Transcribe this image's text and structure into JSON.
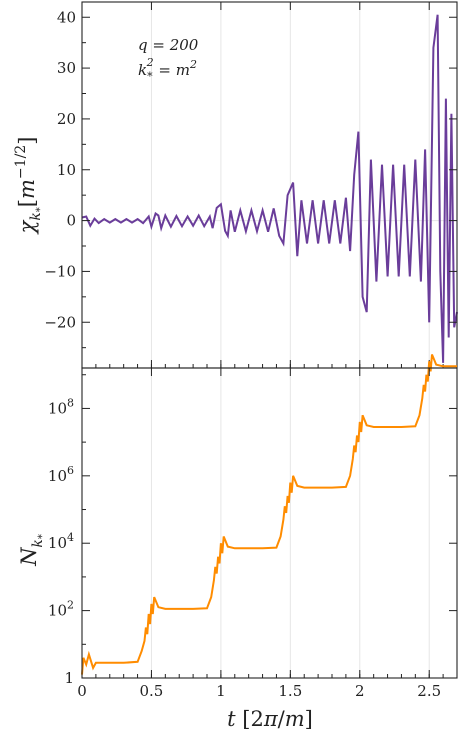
{
  "chart_data": [
    {
      "type": "line",
      "panel": "top",
      "ylabel": "χ_{k*} [m^{-1/2}]",
      "ylabel_parts": {
        "symbol": "χ",
        "sub": "k",
        "subsub": "*",
        "unit_open": "[",
        "unit_base": "m",
        "unit_exp": "−1/2",
        "unit_close": "]"
      },
      "x_range": [
        0,
        2.7
      ],
      "ylim": [
        -29,
        43
      ],
      "yticks": [
        -20,
        -10,
        0,
        10,
        20,
        30,
        40
      ],
      "ytick_labels": [
        "−20",
        "−10",
        "0",
        "10",
        "20",
        "30",
        "40"
      ],
      "annotations": [
        {
          "text": "q = 200"
        },
        {
          "text": "k*² = m²",
          "parts": {
            "k": "k",
            "sub": "*",
            "sup": "2",
            "eq": " = ",
            "m": "m",
            "msup": "2"
          }
        }
      ],
      "grid": "vertical",
      "color": "#6a3d9a",
      "series": [
        {
          "x": [
            0,
            0.03,
            0.06,
            0.09,
            0.12,
            0.16,
            0.2,
            0.24,
            0.28,
            0.32,
            0.36,
            0.4,
            0.44,
            0.48,
            0.5,
            0.53,
            0.55,
            0.57,
            0.6,
            0.64,
            0.68,
            0.72,
            0.76,
            0.8,
            0.84,
            0.88,
            0.92,
            0.94,
            0.97,
            1.0,
            1.03,
            1.05,
            1.07,
            1.1,
            1.14,
            1.18,
            1.22,
            1.26,
            1.3,
            1.34,
            1.38,
            1.42,
            1.45,
            1.48,
            1.52,
            1.55,
            1.58,
            1.62,
            1.66,
            1.7,
            1.74,
            1.78,
            1.82,
            1.86,
            1.9,
            1.93,
            1.96,
            1.99,
            2.02,
            2.05,
            2.08,
            2.12,
            2.16,
            2.2,
            2.24,
            2.28,
            2.32,
            2.36,
            2.4,
            2.44,
            2.47,
            2.5,
            2.53,
            2.56,
            2.58,
            2.6,
            2.62,
            2.64,
            2.66,
            2.68,
            2.7
          ],
          "y": [
            0.6,
            0.8,
            -1.0,
            0.4,
            -0.5,
            0.3,
            -0.4,
            0.3,
            -0.4,
            0.3,
            -0.4,
            0.3,
            -0.5,
            0.8,
            -1.2,
            1.4,
            1.0,
            -1.5,
            1.0,
            -1.2,
            0.9,
            -1.1,
            0.8,
            -1.0,
            1.0,
            -1.1,
            0.8,
            -1.5,
            2.5,
            3.2,
            -2.0,
            -3.0,
            2.0,
            -2.2,
            2.0,
            -2.1,
            2.0,
            -2.1,
            2.0,
            -2.2,
            2.4,
            -3.0,
            -4.5,
            5.0,
            7.5,
            -7.0,
            4.0,
            -4.5,
            4.0,
            -4.5,
            4.0,
            -4.5,
            4.0,
            -4.5,
            4.5,
            -6.0,
            9.0,
            17.5,
            -15.0,
            -18.0,
            12.0,
            -12.0,
            11.0,
            -11.0,
            11.0,
            -11.0,
            11.0,
            -11.0,
            12.0,
            -12.0,
            14.0,
            -20.0,
            34.0,
            40.5,
            -10.0,
            -28.0,
            24.0,
            -23.0,
            21.0,
            -21.0,
            -18.0
          ]
        }
      ]
    },
    {
      "type": "line",
      "panel": "bottom",
      "xlabel": "t [2π/m]",
      "xlabel_parts": {
        "var": "t",
        "open": " [2",
        "pi": "π",
        "slash": "/",
        "m": "m",
        "close": "]"
      },
      "ylabel": "N_{k*}",
      "ylabel_parts": {
        "symbol": "N",
        "sub": "k",
        "subsub": "*"
      },
      "x_range": [
        0,
        2.7
      ],
      "xticks": [
        0,
        0.5,
        1,
        1.5,
        2,
        2.5
      ],
      "xtick_labels": [
        "0",
        "0.5",
        "1",
        "1.5",
        "2",
        "2.5"
      ],
      "y_scale": "log",
      "ylim_log10": [
        0,
        9.2
      ],
      "ytick_labels": [
        {
          "base": "1",
          "exp": "",
          "log10": 0
        },
        {
          "base": "10",
          "exp": "2",
          "log10": 2
        },
        {
          "base": "10",
          "exp": "4",
          "log10": 4
        },
        {
          "base": "10",
          "exp": "6",
          "log10": 6
        },
        {
          "base": "10",
          "exp": "8",
          "log10": 8
        }
      ],
      "grid": "vertical",
      "color": "#ff8c00",
      "series": [
        {
          "x": [
            0,
            0.01,
            0.03,
            0.05,
            0.08,
            0.1,
            0.2,
            0.3,
            0.4,
            0.43,
            0.45,
            0.46,
            0.47,
            0.48,
            0.49,
            0.5,
            0.51,
            0.52,
            0.55,
            0.6,
            0.7,
            0.8,
            0.9,
            0.93,
            0.95,
            0.96,
            0.97,
            0.98,
            0.99,
            1.0,
            1.01,
            1.02,
            1.05,
            1.1,
            1.2,
            1.3,
            1.4,
            1.43,
            1.45,
            1.46,
            1.47,
            1.48,
            1.49,
            1.5,
            1.51,
            1.52,
            1.55,
            1.6,
            1.7,
            1.8,
            1.9,
            1.93,
            1.95,
            1.96,
            1.97,
            1.98,
            1.99,
            2.0,
            2.01,
            2.02,
            2.05,
            2.1,
            2.2,
            2.3,
            2.4,
            2.43,
            2.45,
            2.46,
            2.47,
            2.48,
            2.49,
            2.5,
            2.51,
            2.52,
            2.55,
            2.6,
            2.7
          ],
          "log10_y": [
            0.1,
            0.6,
            0.4,
            0.7,
            0.3,
            0.45,
            0.45,
            0.45,
            0.48,
            0.8,
            1.1,
            1.5,
            1.3,
            1.9,
            1.6,
            2.2,
            1.9,
            2.4,
            2.1,
            2.05,
            2.05,
            2.05,
            2.07,
            2.4,
            2.9,
            3.3,
            3.1,
            3.6,
            3.4,
            4.0,
            3.7,
            4.2,
            3.9,
            3.85,
            3.85,
            3.85,
            3.87,
            4.2,
            4.7,
            5.1,
            4.9,
            5.4,
            5.2,
            5.8,
            5.5,
            6.0,
            5.7,
            5.65,
            5.65,
            5.65,
            5.67,
            6.0,
            6.5,
            6.9,
            6.7,
            7.2,
            7.0,
            7.6,
            7.3,
            7.8,
            7.5,
            7.45,
            7.45,
            7.45,
            7.47,
            7.8,
            8.3,
            8.7,
            8.5,
            9.0,
            8.8,
            9.4,
            9.1,
            9.6,
            9.3,
            9.25,
            9.25
          ]
        }
      ]
    }
  ]
}
